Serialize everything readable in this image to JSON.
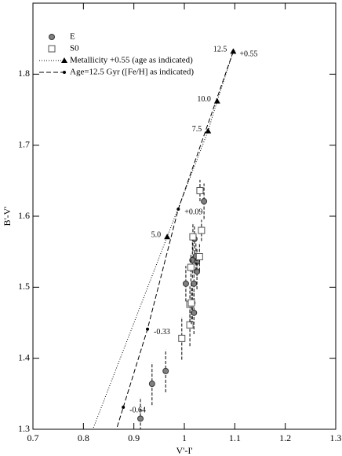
{
  "chart_data": {
    "type": "scatter",
    "xlabel": "V'-I'",
    "ylabel": "B'-V'",
    "xlim": [
      0.7,
      1.3
    ],
    "xticks": [
      0.7,
      0.8,
      0.9,
      1,
      1.1,
      1.2,
      1.3
    ],
    "ylim": [
      1.3,
      1.9
    ],
    "yticks": [
      1.3,
      1.4,
      1.5,
      1.6,
      1.7,
      1.8
    ],
    "series": [
      {
        "name": "E",
        "marker": "circle",
        "color": "#808080",
        "x": [
          0.913,
          0.936,
          0.963,
          1.003,
          1.016,
          1.019,
          1.019,
          1.016,
          1.02,
          1.025,
          1.025,
          1.039,
          1.023
        ],
        "values": [
          1.315,
          1.364,
          1.382,
          1.505,
          1.478,
          1.464,
          1.505,
          1.538,
          1.568,
          1.536,
          1.522,
          1.621,
          1.544
        ],
        "yerr": [
          0.03,
          0.03,
          0.03,
          0.025,
          0.03,
          0.03,
          0.025,
          0.025,
          0.02,
          0.02,
          0.025,
          0.025,
          0.02
        ]
      },
      {
        "name": "S0",
        "marker": "square",
        "color": "#808080",
        "x": [
          0.995,
          1.011,
          1.011,
          1.013,
          1.017,
          1.03,
          1.034,
          1.031,
          1.014
        ],
        "values": [
          1.428,
          1.447,
          1.476,
          1.528,
          1.571,
          1.543,
          1.58,
          1.636,
          1.478
        ],
        "yerr": [
          0.03,
          0.03,
          0.025,
          0.02,
          0.02,
          0.02,
          0.015,
          0.015,
          0.03
        ]
      },
      {
        "name": "Metallicity +0.55 (age as indicated)",
        "marker": "triangle",
        "line": "dotted",
        "color": "#000000",
        "x": [
          0.966,
          1.047,
          1.065,
          1.097
        ],
        "values": [
          1.571,
          1.72,
          1.762,
          1.832
        ],
        "point_labels": [
          "5.0",
          "7.5",
          "10.0",
          "12.5"
        ]
      },
      {
        "name": "Age=12.5 Gyr ([Fe/H] as indicated)",
        "marker": "dot",
        "line": "dashed",
        "color": "#000000",
        "x": [
          0.879,
          0.927,
          0.988,
          1.097
        ],
        "values": [
          1.331,
          1.441,
          1.61,
          1.832
        ],
        "point_labels": [
          "-0.64",
          "-0.33",
          "+0.09",
          "+0.55"
        ]
      }
    ]
  }
}
